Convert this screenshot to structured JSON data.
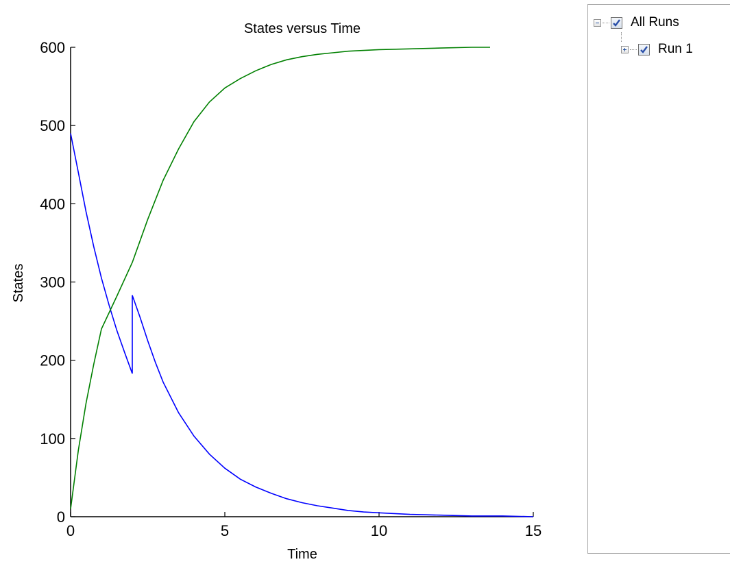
{
  "chart_data": {
    "type": "line",
    "title": "States versus Time",
    "xlabel": "Time",
    "ylabel": "States",
    "xlim": [
      0,
      15
    ],
    "ylim": [
      0,
      600
    ],
    "xticks": [
      0,
      5,
      10,
      15
    ],
    "yticks": [
      0,
      100,
      200,
      300,
      400,
      500,
      600
    ],
    "grid": false,
    "series": [
      {
        "color": "#0000ff",
        "x": [
          0,
          0.25,
          0.5,
          0.75,
          1.0,
          1.25,
          1.5,
          1.75,
          2.0,
          2.0,
          2.25,
          2.5,
          2.75,
          3.0,
          3.5,
          4.0,
          4.5,
          5.0,
          5.5,
          6.0,
          6.5,
          7.0,
          7.5,
          8.0,
          8.5,
          9.0,
          9.5,
          10.0,
          11.0,
          12.0,
          13.0,
          14.0,
          15.0
        ],
        "y": [
          490,
          440,
          390,
          345,
          305,
          270,
          238,
          210,
          183,
          283,
          255,
          225,
          197,
          172,
          133,
          103,
          80,
          62,
          48,
          38,
          30,
          23,
          18,
          14,
          11,
          8,
          6,
          5,
          3,
          2,
          1,
          1,
          0
        ]
      },
      {
        "color": "#008000",
        "x": [
          0,
          0.25,
          0.5,
          0.75,
          1.0,
          1.5,
          2.0,
          2.5,
          3.0,
          3.5,
          4.0,
          4.5,
          5.0,
          5.5,
          6.0,
          6.5,
          7.0,
          7.5,
          8.0,
          8.5,
          9.0,
          9.5,
          10.0,
          11.0,
          12.0,
          13.0,
          13.6
        ],
        "y": [
          10,
          85,
          145,
          195,
          240,
          282,
          325,
          380,
          430,
          470,
          505,
          530,
          548,
          560,
          570,
          578,
          584,
          588,
          591,
          593,
          595,
          596,
          597,
          598,
          599,
          600,
          600
        ]
      }
    ]
  },
  "tree": {
    "all_runs_label": "All Runs",
    "run1_label": "Run 1",
    "all_runs_checked": true,
    "run1_checked": true
  },
  "colors": {
    "checkmark": "#2a4fa8"
  }
}
